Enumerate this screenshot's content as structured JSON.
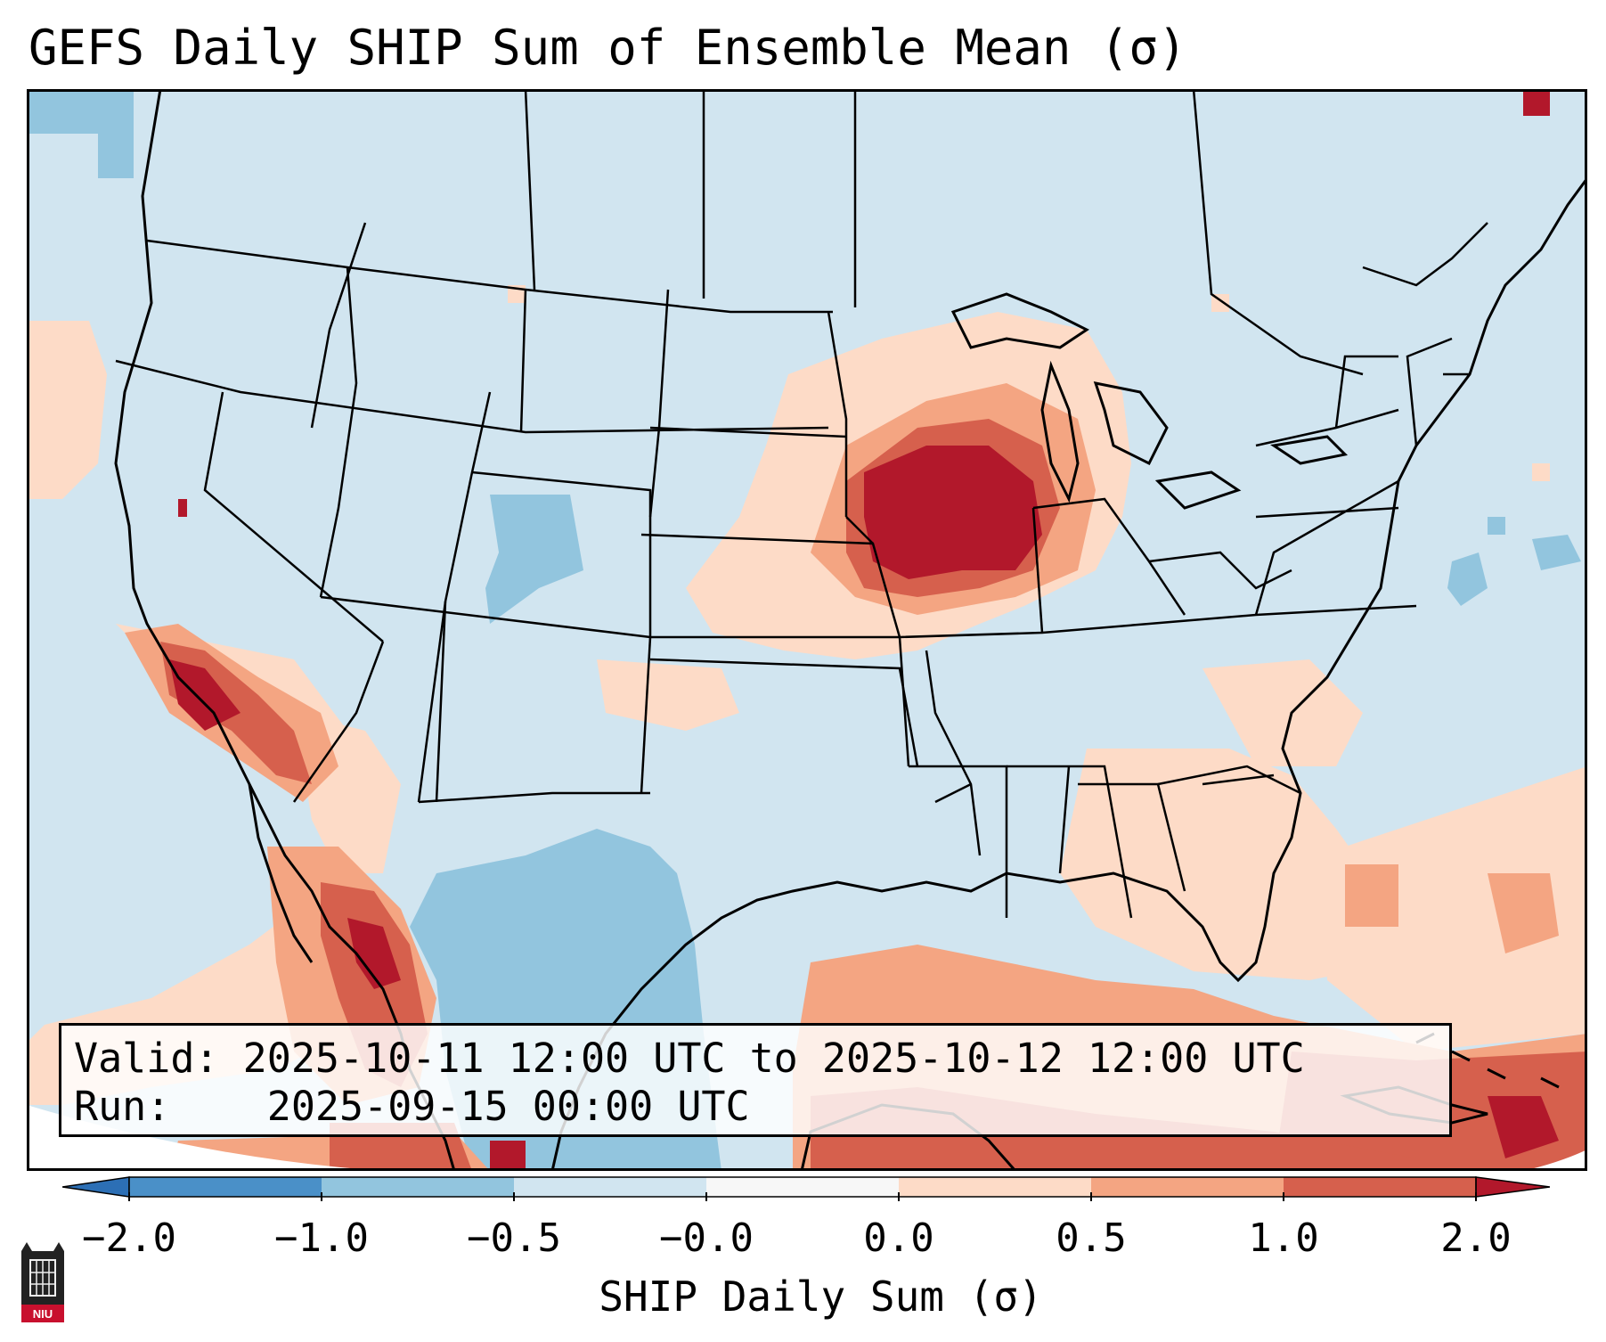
{
  "title": "GEFS Daily SHIP Sum of Ensemble Mean (σ)",
  "info": {
    "valid_label": "Valid:",
    "valid_value": "2025-10-11 12:00 UTC to 2025-10-12 12:00 UTC",
    "run_label": "Run:",
    "run_value": "2025-09-15 00:00 UTC"
  },
  "colorbar": {
    "label": "SHIP Daily Sum (σ)",
    "tick_labels": [
      "−2.0",
      "−1.0",
      "−0.5",
      "−0.0",
      "0.0",
      "0.5",
      "1.0",
      "2.0"
    ],
    "colors": {
      "under": "#2c6fb5",
      "bin_m2_m1": "#4a90c8",
      "bin_m1_m05": "#92c5de",
      "bin_m05_0": "#d1e5f0",
      "bin_0": "#f7f7f7",
      "bin_0_05": "#fddbc7",
      "bin_05_1": "#f4a582",
      "bin_1_2": "#d6604d",
      "over": "#b2182b"
    }
  },
  "map": {
    "region": "Contiguous United States with Mexico, Caribbean and southern Canada",
    "background_color": "#d1e5f0",
    "boundary_color": "#000000"
  },
  "logo": {
    "text": "NIU"
  }
}
